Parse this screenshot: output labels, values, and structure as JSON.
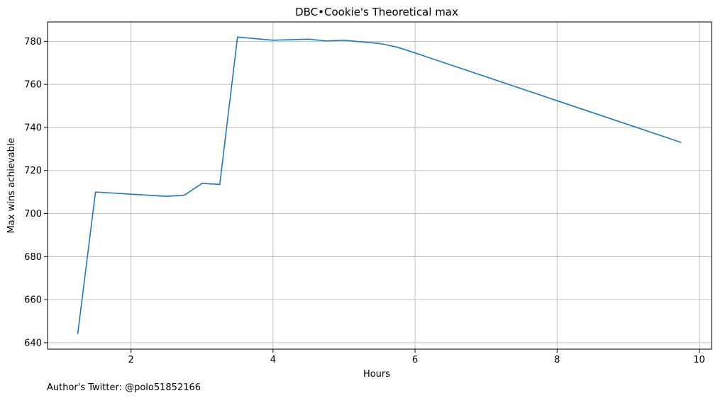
{
  "chart_data": {
    "type": "line",
    "title": "DBC•Cookie's Theoretical max",
    "xlabel": "Hours",
    "ylabel": "Max wins achievable",
    "xlim": [
      0.825,
      10.175
    ],
    "ylim": [
      637,
      789
    ],
    "xticks": [
      2,
      4,
      6,
      8,
      10
    ],
    "yticks": [
      640,
      660,
      680,
      700,
      720,
      740,
      760,
      780
    ],
    "grid": true,
    "legend": "none",
    "series": [
      {
        "color": "#1f77b4",
        "x": [
          1.25,
          1.5,
          2.0,
          2.5,
          2.75,
          3.0,
          3.25,
          3.5,
          4.0,
          4.5,
          4.75,
          5.0,
          5.5,
          5.75,
          6.0,
          9.75
        ],
        "y": [
          644,
          710,
          709,
          708,
          708.5,
          714,
          713.5,
          782,
          780.5,
          781,
          780.2,
          780.5,
          779,
          777.3,
          774.6,
          733
        ]
      }
    ]
  },
  "footer": {
    "text": "Author's Twitter: @polo51852166"
  }
}
